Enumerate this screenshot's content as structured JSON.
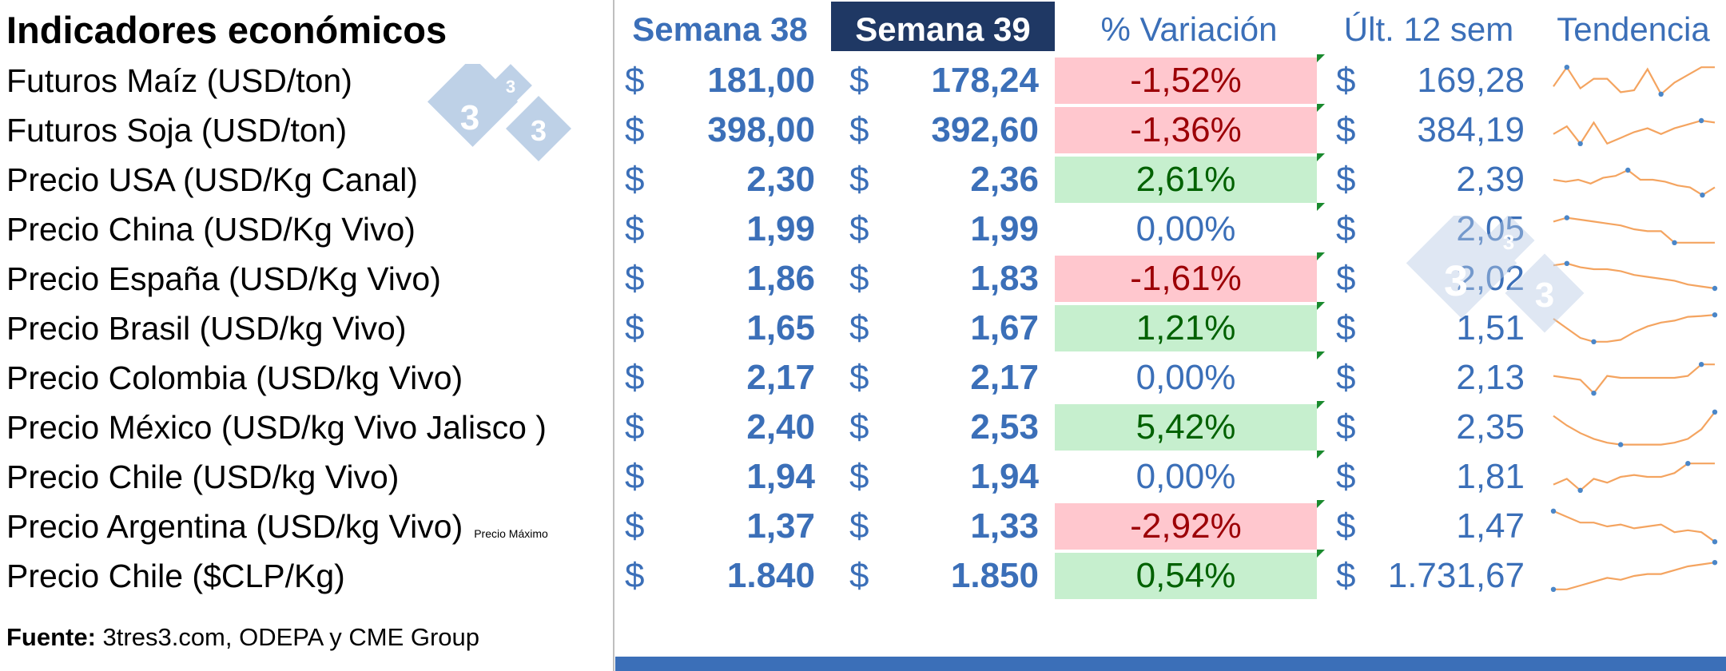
{
  "title": "Indicadores económicos",
  "headers": {
    "week_prev": "Semana 38",
    "week_curr": "Semana 39",
    "variation": "% Variación",
    "last12": "Últ. 12 sem",
    "trend": "Tendencia"
  },
  "currency_symbol": "$",
  "rows": [
    {
      "label": "Futuros Maíz (USD/ton)",
      "note": "",
      "w38": "181,00",
      "w39": "178,24",
      "var": "-1,52%",
      "var_state": "neg",
      "last12": "169,28",
      "trend": [
        0.35,
        0.85,
        0.3,
        0.55,
        0.55,
        0.2,
        0.25,
        0.8,
        0.15,
        0.45,
        0.65,
        0.85,
        0.85
      ]
    },
    {
      "label": "Futuros Soja (USD/ton)",
      "note": "",
      "w38": "398,00",
      "w39": "392,60",
      "var": "-1,36%",
      "var_state": "neg",
      "last12": "384,19",
      "trend": [
        0.4,
        0.6,
        0.15,
        0.7,
        0.15,
        0.3,
        0.45,
        0.55,
        0.4,
        0.55,
        0.65,
        0.75,
        0.7
      ]
    },
    {
      "label": "Precio USA (USD/Kg Canal)",
      "note": "",
      "w38": "2,30",
      "w39": "2,36",
      "var": "2,61%",
      "var_state": "pos",
      "last12": "2,39",
      "trend": [
        0.5,
        0.45,
        0.5,
        0.4,
        0.55,
        0.6,
        0.75,
        0.5,
        0.5,
        0.45,
        0.35,
        0.3,
        0.1,
        0.3
      ]
    },
    {
      "label": "Precio China (USD/Kg Vivo)",
      "note": "",
      "w38": "1,99",
      "w39": "1,99",
      "var": "0,00%",
      "var_state": "zero",
      "last12": "2,05",
      "trend": [
        0.7,
        0.8,
        0.75,
        0.7,
        0.65,
        0.6,
        0.5,
        0.45,
        0.45,
        0.15,
        0.15,
        0.15,
        0.15
      ]
    },
    {
      "label": "Precio España (USD/Kg Vivo)",
      "note": "",
      "w38": "1,86",
      "w39": "1,83",
      "var": "-1,61%",
      "var_state": "neg",
      "last12": "2,02",
      "trend": [
        0.85,
        0.9,
        0.8,
        0.75,
        0.75,
        0.7,
        0.6,
        0.55,
        0.5,
        0.45,
        0.35,
        0.3,
        0.25
      ]
    },
    {
      "label": "Precio  Brasil (USD/kg Vivo)",
      "note": "",
      "w38": "1,65",
      "w39": "1,67",
      "var": "1,21%",
      "var_state": "pos",
      "last12": "1,51",
      "trend": [
        0.75,
        0.5,
        0.25,
        0.15,
        0.15,
        0.2,
        0.4,
        0.55,
        0.65,
        0.7,
        0.8,
        0.82,
        0.85
      ]
    },
    {
      "label": "Precio Colombia (USD/kg Vivo)",
      "note": "",
      "w38": "2,17",
      "w39": "2,17",
      "var": "0,00%",
      "var_state": "zero",
      "last12": "2,13",
      "trend": [
        0.55,
        0.5,
        0.45,
        0.1,
        0.55,
        0.5,
        0.5,
        0.5,
        0.5,
        0.5,
        0.55,
        0.85,
        0.85
      ]
    },
    {
      "label": "Precio México (USD/kg Vivo Jalisco )",
      "note": "",
      "w38": "2,40",
      "w39": "2,53",
      "var": "5,42%",
      "var_state": "pos",
      "last12": "2,35",
      "trend": [
        0.8,
        0.55,
        0.35,
        0.2,
        0.1,
        0.05,
        0.05,
        0.05,
        0.05,
        0.1,
        0.2,
        0.45,
        0.9
      ]
    },
    {
      "label": "Precio Chile (USD/kg Vivo)",
      "note": "",
      "w38": "1,94",
      "w39": "1,94",
      "var": "0,00%",
      "var_state": "zero",
      "last12": "1,81",
      "trend": [
        0.3,
        0.45,
        0.15,
        0.45,
        0.35,
        0.5,
        0.55,
        0.5,
        0.5,
        0.6,
        0.85,
        0.85,
        0.85
      ]
    },
    {
      "label": "Precio Argentina (USD/kg Vivo)",
      "note": "Precio Máximo",
      "w38": "1,37",
      "w39": "1,33",
      "var": "-2,92%",
      "var_state": "neg",
      "last12": "1,47",
      "trend": [
        0.9,
        0.75,
        0.6,
        0.6,
        0.5,
        0.55,
        0.45,
        0.5,
        0.55,
        0.35,
        0.4,
        0.35,
        0.1
      ]
    },
    {
      "label": "Precio Chile ($CLP/Kg)",
      "note": "",
      "w38": "1.840",
      "w39": "1.850",
      "var": "0,54%",
      "var_state": "pos",
      "last12": "1.731,67",
      "trend": [
        0.15,
        0.15,
        0.25,
        0.35,
        0.45,
        0.4,
        0.5,
        0.55,
        0.55,
        0.65,
        0.75,
        0.8,
        0.85
      ]
    }
  ],
  "footer": {
    "label": "Fuente:",
    "text": " 3tres3.com, ODEPA y CME Group"
  },
  "logo": {
    "digit_big": "3",
    "digit_small": "3"
  },
  "colors": {
    "accent": "#3b6fb8",
    "header_selected_bg": "#1f3864",
    "negative_bg": "#ffc7ce",
    "negative_text": "#9c0006",
    "positive_bg": "#c6efce",
    "positive_text": "#006100",
    "sparkline": "#f4a460",
    "sparkline_marker": "#4a86c8"
  }
}
